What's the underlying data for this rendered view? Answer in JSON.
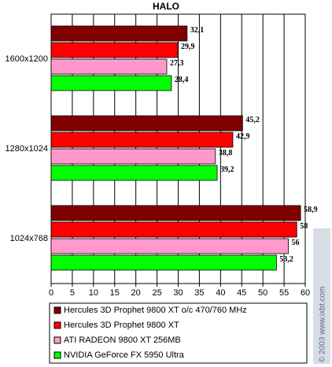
{
  "chart_data": {
    "type": "hbar",
    "title": "HALO",
    "categories": [
      "1600x1200",
      "1280x1024",
      "1024x768"
    ],
    "series": [
      {
        "name": "Hercules 3D Prophet 9800 XT o/c 470/760 MHz",
        "color": "#800000",
        "values": [
          32.1,
          45.2,
          58.9
        ],
        "value_labels": [
          "32,1",
          "45,2",
          "58,9"
        ]
      },
      {
        "name": "Hercules 3D Prophet 9800 XT",
        "color": "#ff0000",
        "values": [
          29.9,
          42.9,
          58
        ],
        "value_labels": [
          "29,9",
          "42,9",
          "58"
        ]
      },
      {
        "name": "ATI RADEON 9800 XT 256MB",
        "color": "#ff99cc",
        "values": [
          27.3,
          38.8,
          56
        ],
        "value_labels": [
          "27,3",
          "38,8",
          "56"
        ]
      },
      {
        "name": "NVIDIA GeForce FX 5950 Ultra",
        "color": "#00ff00",
        "values": [
          28.4,
          39.2,
          53.2
        ],
        "value_labels": [
          "28,4",
          "39,2",
          "53,2"
        ]
      }
    ],
    "xlim": [
      0,
      60
    ],
    "xticks": [
      0,
      5,
      10,
      15,
      20,
      25,
      30,
      35,
      40,
      45,
      50,
      55,
      60
    ],
    "grid": true,
    "watermark": "© 2003 www.ixbt.com"
  }
}
